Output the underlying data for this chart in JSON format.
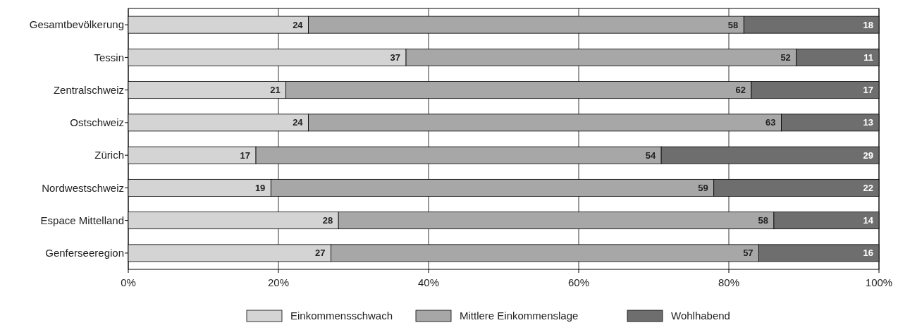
{
  "chart_data": {
    "type": "bar",
    "orientation": "horizontal",
    "stacked": true,
    "data_labels": true,
    "categories": [
      "Gesamtbevölkerung",
      "Tessin",
      "Zentralschweiz",
      "Ostschweiz",
      "Zürich",
      "Nordwestschweiz",
      "Espace Mittelland",
      "Genferseeregion"
    ],
    "series": [
      {
        "name": "Einkommensschwach",
        "color": "#d4d4d4",
        "values": [
          24,
          37,
          21,
          24,
          17,
          19,
          28,
          27
        ]
      },
      {
        "name": "Mittlere Einkommenslage",
        "color": "#a7a7a7",
        "values": [
          58,
          52,
          62,
          63,
          54,
          59,
          58,
          57
        ]
      },
      {
        "name": "Wohlhabend",
        "color": "#6e6e6e",
        "values": [
          18,
          11,
          17,
          13,
          29,
          22,
          14,
          16
        ]
      }
    ],
    "xlim": [
      0,
      100
    ],
    "xticks": [
      {
        "value": 0,
        "label": "0%"
      },
      {
        "value": 20,
        "label": "20%"
      },
      {
        "value": 40,
        "label": "40%"
      },
      {
        "value": 60,
        "label": "60%"
      },
      {
        "value": 80,
        "label": "80%"
      },
      {
        "value": 100,
        "label": "100%"
      }
    ],
    "grid": "x",
    "legend": "bottom"
  }
}
